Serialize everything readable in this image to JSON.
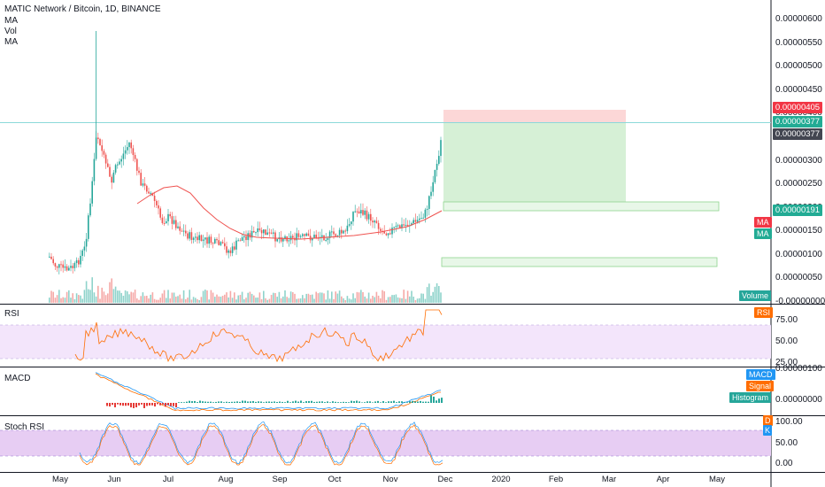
{
  "header": {
    "title": "MATIC Network / Bitcoin, 1D, BINANCE",
    "indicators": [
      "MA",
      "Vol",
      "MA"
    ]
  },
  "price_axis": {
    "ticks": [
      "0.00000600",
      "0.00000550",
      "0.00000500",
      "0.00000450",
      "0.00000400",
      "0.00000350",
      "0.00000300",
      "0.00000250",
      "0.00000200",
      "0.00000150",
      "0.00000100",
      "0.00000050",
      "-0.00000000"
    ],
    "tick_values": [
      600,
      550,
      500,
      450,
      400,
      350,
      300,
      250,
      200,
      150,
      100,
      50,
      0
    ]
  },
  "price_tags": {
    "stop": "0.00000405",
    "last_green": "0.00000377",
    "last_dark": "0.00000377",
    "target": "0.00000191",
    "ma_red": "MA",
    "ma_green": "MA",
    "volume": "Volume"
  },
  "colors": {
    "up": "#26a69a",
    "down": "#ef5350",
    "ma": "#ef5350",
    "rsi_line": "#ff6d00",
    "band_rsi": "#f3e5fb",
    "band_stoch": "#e7cdf3",
    "macd_line": "#2196f3",
    "signal_line": "#ff6d00",
    "profit": "#d6f0d6",
    "loss": "#fcd7d7",
    "crosshair": "#8cd9d9",
    "tag_red": "#f23645",
    "tag_green": "#22ab94",
    "tag_dark": "#434651",
    "tag_blue": "#2196f3",
    "tag_orange": "#ff6d00",
    "tag_teal": "#26a69a"
  },
  "rsi": {
    "label": "RSI",
    "tag": "RSI",
    "ticks": [
      "75.00",
      "50.00",
      "25.00"
    ]
  },
  "macd": {
    "label": "MACD",
    "tags": [
      "MACD",
      "Signal",
      "Histogram"
    ],
    "ticks": [
      "0.00000100",
      "0.00000000"
    ]
  },
  "stoch": {
    "label": "Stoch RSI",
    "tags": [
      "D",
      "K"
    ],
    "ticks": [
      "100.00",
      "50.00",
      "0.00"
    ]
  },
  "time_axis": {
    "labels": [
      "May",
      "Jun",
      "Jul",
      "Aug",
      "Sep",
      "Oct",
      "Nov",
      "Dec",
      "2020",
      "Feb",
      "Mar",
      "Apr",
      "May"
    ]
  }
}
